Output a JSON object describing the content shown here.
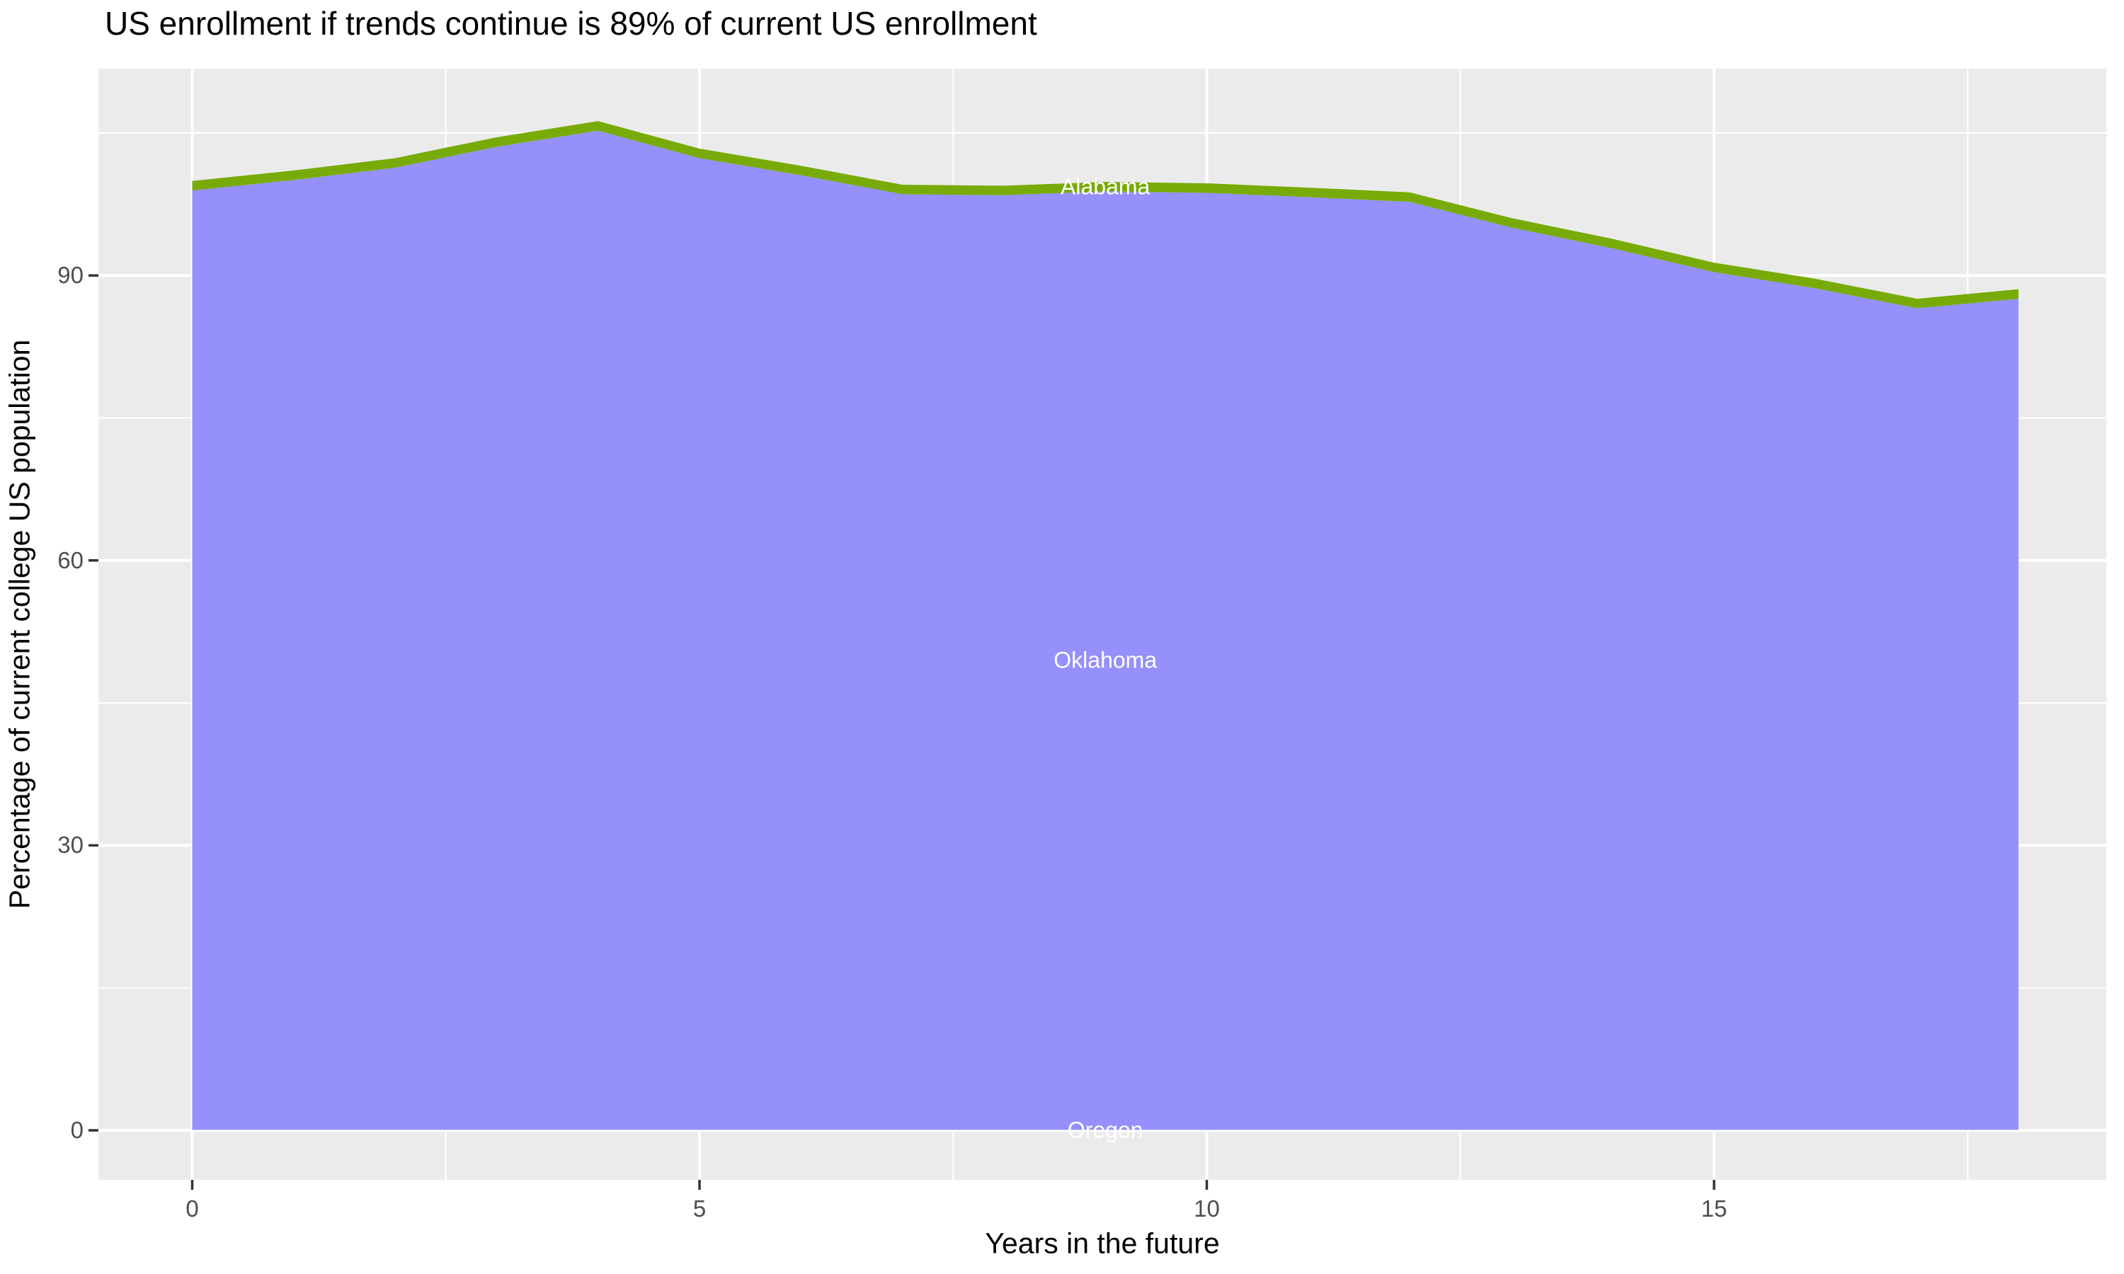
{
  "chart_data": {
    "type": "area",
    "stacked": true,
    "title": "US enrollment if trends continue is 89% of current US enrollment",
    "xlabel": "Years in the future",
    "ylabel": "Percentage of current college US population",
    "x": [
      0,
      1,
      2,
      3,
      4,
      5,
      6,
      7,
      8,
      9,
      10,
      11,
      12,
      13,
      14,
      15,
      16,
      17,
      18
    ],
    "series": [
      {
        "name": "Oregon",
        "color": null,
        "values": [
          0.05,
          0.05,
          0.05,
          0.05,
          0.05,
          0.05,
          0.05,
          0.05,
          0.05,
          0.05,
          0.05,
          0.05,
          0.05,
          0.05,
          0.05,
          0.05,
          0.05,
          0.05,
          0.05
        ]
      },
      {
        "name": "Oklahoma",
        "color": "#9590fb",
        "values": [
          98.9,
          100.0,
          101.3,
          103.5,
          105.2,
          102.3,
          100.5,
          98.5,
          98.4,
          98.8,
          98.65,
          98.2,
          97.7,
          95.0,
          92.8,
          90.3,
          88.6,
          86.5,
          87.5
        ]
      },
      {
        "name": "Alabama",
        "color": "#78ab07",
        "values": [
          1.0,
          1.0,
          1.0,
          1.0,
          1.0,
          1.0,
          1.0,
          1.0,
          1.0,
          1.0,
          1.0,
          1.0,
          1.0,
          1.0,
          1.0,
          1.0,
          1.0,
          1.0,
          1.0
        ]
      }
    ],
    "totals": [
      100.0,
      101.1,
      102.4,
      104.6,
      106.3,
      103.4,
      101.6,
      99.6,
      99.5,
      99.9,
      99.75,
      99.3,
      98.8,
      96.1,
      93.9,
      91.4,
      89.7,
      87.6,
      88.6
    ],
    "x_ticks": [
      0,
      5,
      10,
      15
    ],
    "x_ticklabels": [
      "0",
      "5",
      "10",
      "15"
    ],
    "y_ticks": [
      0,
      30,
      60,
      90
    ],
    "y_ticklabels": [
      "0",
      "30",
      "60",
      "90"
    ],
    "x_minor_ticks": [
      2.5,
      7.5,
      12.5,
      17.5
    ],
    "y_minor_ticks": [
      15,
      45,
      75,
      105
    ],
    "xlim": [
      -0.92,
      18.92
    ],
    "ylim": [
      -5.3,
      111.8
    ],
    "grid": "on",
    "legend": "none",
    "series_label_x": 9,
    "colors": {
      "panel_background": "#ebebeb",
      "gridline": "#ffffff",
      "tick_mark": "#333333",
      "tick_label": "#4d4d4d",
      "title_text": "#000000",
      "area_label_text": "#ffffff",
      "oklahoma_fill": "#9590fb",
      "alabama_fill": "#78ab07"
    }
  }
}
